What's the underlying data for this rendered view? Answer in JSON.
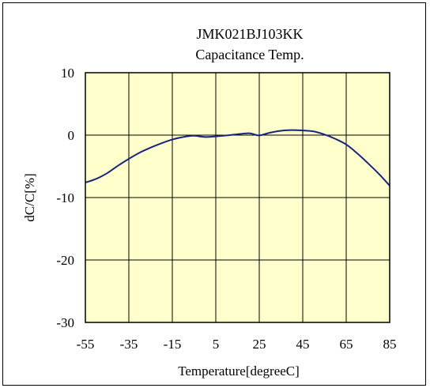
{
  "chart_data": {
    "type": "line",
    "title": "JMK021BJ103KK",
    "subtitle": "Capacitance Temp.",
    "xlabel": "Temperature[degreeC]",
    "ylabel": "dC/C[%]",
    "xlim": [
      -55,
      85
    ],
    "ylim": [
      -30,
      10
    ],
    "xticks": [
      -55,
      -35,
      -15,
      5,
      25,
      45,
      65,
      85
    ],
    "yticks": [
      10,
      0,
      -10,
      -20,
      -30
    ],
    "grid": true,
    "colors": {
      "plot_background": "#ffffcc",
      "line": "#1a237e",
      "grid": "#000000"
    },
    "series": [
      {
        "x": [
          -55,
          -50,
          -45,
          -40,
          -35,
          -30,
          -25,
          -20,
          -15,
          -10,
          -5,
          0,
          5,
          10,
          15,
          20,
          22,
          25,
          30,
          35,
          40,
          45,
          50,
          55,
          60,
          65,
          70,
          75,
          80,
          85
        ],
        "y": [
          -7.6,
          -7.0,
          -6.1,
          -4.9,
          -3.8,
          -2.8,
          -2.0,
          -1.3,
          -0.7,
          -0.3,
          -0.1,
          -0.3,
          -0.2,
          -0.05,
          0.15,
          0.3,
          0.2,
          -0.05,
          0.4,
          0.7,
          0.8,
          0.75,
          0.6,
          0.1,
          -0.6,
          -1.5,
          -2.9,
          -4.5,
          -6.2,
          -8.1
        ]
      }
    ]
  }
}
